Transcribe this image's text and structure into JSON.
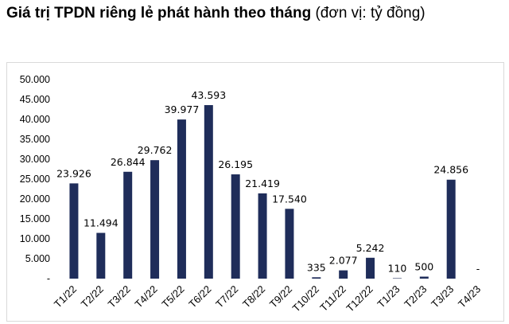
{
  "chart_data": {
    "type": "bar",
    "title": "Giá trị TPDN riêng lẻ phát hành theo tháng",
    "subtitle": "(đơn vị: tỷ đồng)",
    "xlabel": "",
    "ylabel": "",
    "ylim": [
      0,
      50000
    ],
    "yticks": [
      0,
      5000,
      10000,
      15000,
      20000,
      25000,
      30000,
      35000,
      40000,
      45000,
      50000
    ],
    "ytick_labels": [
      "-",
      "5.000",
      "10.000",
      "15.000",
      "20.000",
      "25.000",
      "30.000",
      "35.000",
      "40.000",
      "45.000",
      "50.000"
    ],
    "grid": false,
    "legend": "none",
    "bar_color": "#1f2d5a",
    "categories": [
      "T1/22",
      "T2/22",
      "T3/22",
      "T4/22",
      "T5/22",
      "T6/22",
      "T7/22",
      "T8/22",
      "T9/22",
      "T10/22",
      "T11/22",
      "T12/22",
      "T1/23",
      "T2/23",
      "T3/23",
      "T4/23"
    ],
    "values": [
      23926,
      11494,
      26844,
      29762,
      39977,
      43593,
      26195,
      21419,
      17540,
      335,
      2077,
      5242,
      110,
      500,
      24856,
      0
    ],
    "data_labels": [
      "23.926",
      "11.494",
      "26.844",
      "29.762",
      "39.977",
      "43.593",
      "26.195",
      "21.419",
      "17.540",
      "335",
      "2.077",
      "5.242",
      "110",
      "500",
      "24.856",
      "-"
    ]
  }
}
